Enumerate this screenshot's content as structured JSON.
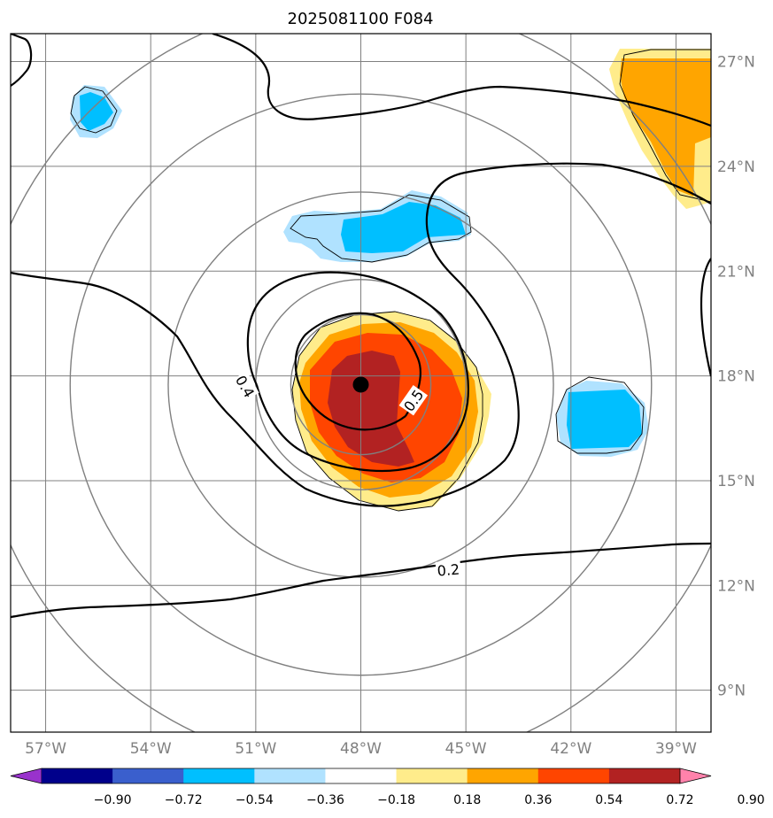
{
  "title": "2025081100 F084",
  "map": {
    "lon_range": [
      -58,
      -38
    ],
    "lat_range": [
      7.8,
      27.8
    ],
    "lon_ticks": [
      -57,
      -54,
      -51,
      -48,
      -45,
      -42,
      -39
    ],
    "lon_tick_labels": [
      "57°W",
      "54°W",
      "51°W",
      "48°W",
      "45°W",
      "42°W",
      "39°W"
    ],
    "lat_ticks": [
      9,
      12,
      15,
      18,
      21,
      24,
      27
    ],
    "lat_tick_labels": [
      "9°N",
      "12°N",
      "15°N",
      "18°N",
      "21°N",
      "24°N",
      "27°N"
    ],
    "grid": true,
    "grid_color": "#808080",
    "center": {
      "lon": -48,
      "lat": 17.75,
      "marker": "black-dot"
    },
    "range_rings_deg": [
      2,
      3,
      5.5,
      8.3,
      11
    ],
    "contour_labels": [
      {
        "text": "0.4",
        "lon": -51.3,
        "lat": 17.7,
        "rotate": 60
      },
      {
        "text": "0.5",
        "lon": -46.5,
        "lat": 17.3,
        "rotate": -55
      },
      {
        "text": "0.2",
        "lon": -45.5,
        "lat": 12.45,
        "rotate": -5
      }
    ]
  },
  "colorbar": {
    "colors": [
      "#9932cc",
      "#00008b",
      "#3a5fcd",
      "#00bfff",
      "#b0e2ff",
      "#ffffff",
      "#ffec8b",
      "#ffa500",
      "#ff4500",
      "#b22222",
      "#ff82ab"
    ],
    "labels": [
      "−0.90",
      "−0.72",
      "−0.54",
      "−0.36",
      "−0.18",
      "0.18",
      "0.36",
      "0.54",
      "0.72",
      "0.90"
    ],
    "extend": "both"
  },
  "fill_colors": {
    "light_yellow": "#ffec8b",
    "orange": "#ffa500",
    "red_orange": "#ff4500",
    "dark_red": "#b22222",
    "light_blue": "#b0e2ff",
    "deep_sky_blue": "#00bfff"
  }
}
